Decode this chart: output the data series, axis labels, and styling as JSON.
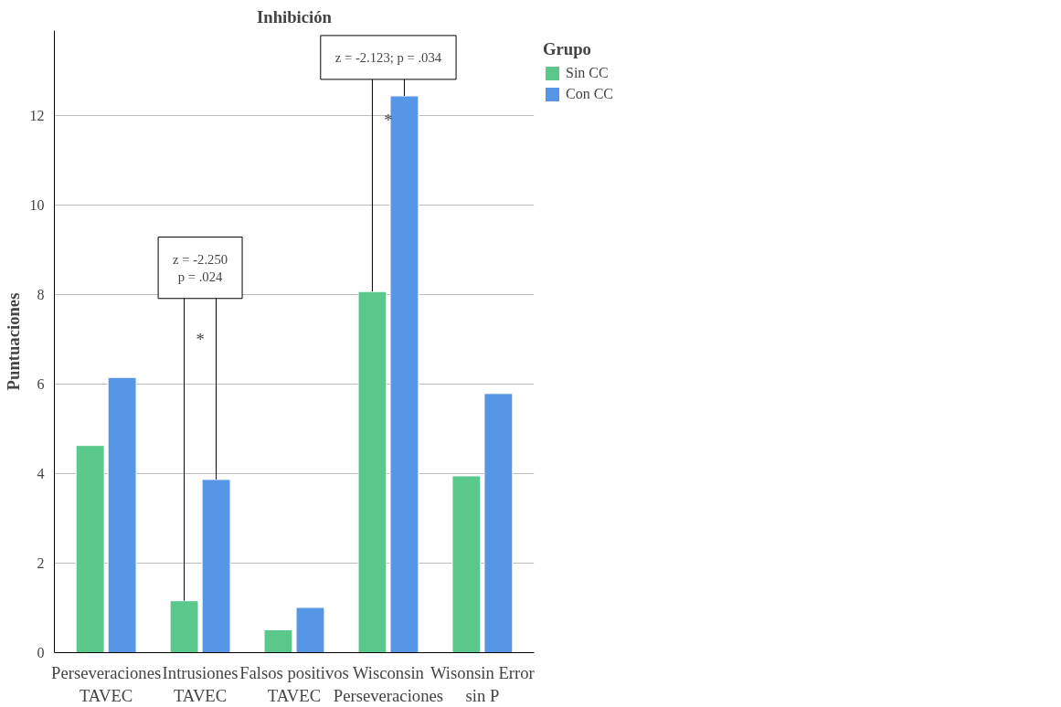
{
  "chart_data": {
    "type": "bar",
    "title": "Inhibición",
    "ylabel": "Puntuaciones",
    "legend_title": "Grupo",
    "categories": [
      "Perseveraciones\nTAVEC",
      "Intrusiones\nTAVEC",
      "Falsos positivos\nTAVEC",
      "Wisconsin\nPerseveraciones",
      "Wisonsin Error\nsin P"
    ],
    "series": [
      {
        "name": "Sin CC",
        "color": "#5ac88a",
        "values": [
          4.63,
          1.16,
          0.51,
          8.07,
          3.95
        ]
      },
      {
        "name": "Con CC",
        "color": "#5596e6",
        "values": [
          6.15,
          3.87,
          1.01,
          12.44,
          5.79
        ]
      }
    ],
    "ylim": [
      0,
      13.9
    ],
    "yticks": [
      0,
      2,
      4,
      6,
      8,
      10,
      12
    ],
    "grid": "y",
    "legend": "top right",
    "annotations": [
      "z = -2.250\np = .024",
      "*",
      "z = -2.123; p = .034",
      "*"
    ]
  }
}
